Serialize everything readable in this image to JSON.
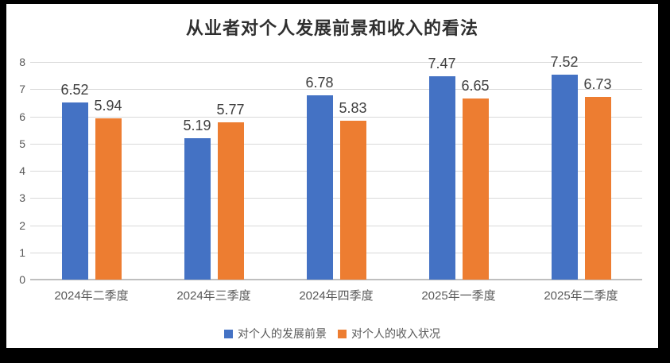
{
  "frame": {
    "border_color": "#000000",
    "canvas_background": "#ffffff"
  },
  "chart_data": {
    "type": "bar",
    "title": "从业者对个人发展前景和收入的看法",
    "categories": [
      "2024年二季度",
      "2024年三季度",
      "2024年四季度",
      "2025年一季度",
      "2025年二季度"
    ],
    "series": [
      {
        "name": "对个人的发展前景",
        "color": "#4472C4",
        "values": [
          6.52,
          5.19,
          6.78,
          7.47,
          7.52
        ]
      },
      {
        "name": "对个人的收入状况",
        "color": "#ED7D31",
        "values": [
          5.94,
          5.77,
          5.83,
          6.65,
          6.73
        ]
      }
    ],
    "xlabel": "",
    "ylabel": "",
    "ylim": [
      0,
      8
    ],
    "yticks": [
      0,
      1,
      2,
      3,
      4,
      5,
      6,
      7,
      8
    ],
    "grid": true,
    "gridline_color": "#d9d9d9",
    "axis_line_color": "#bfbfbf",
    "data_labels": true,
    "legend_position": "bottom"
  }
}
